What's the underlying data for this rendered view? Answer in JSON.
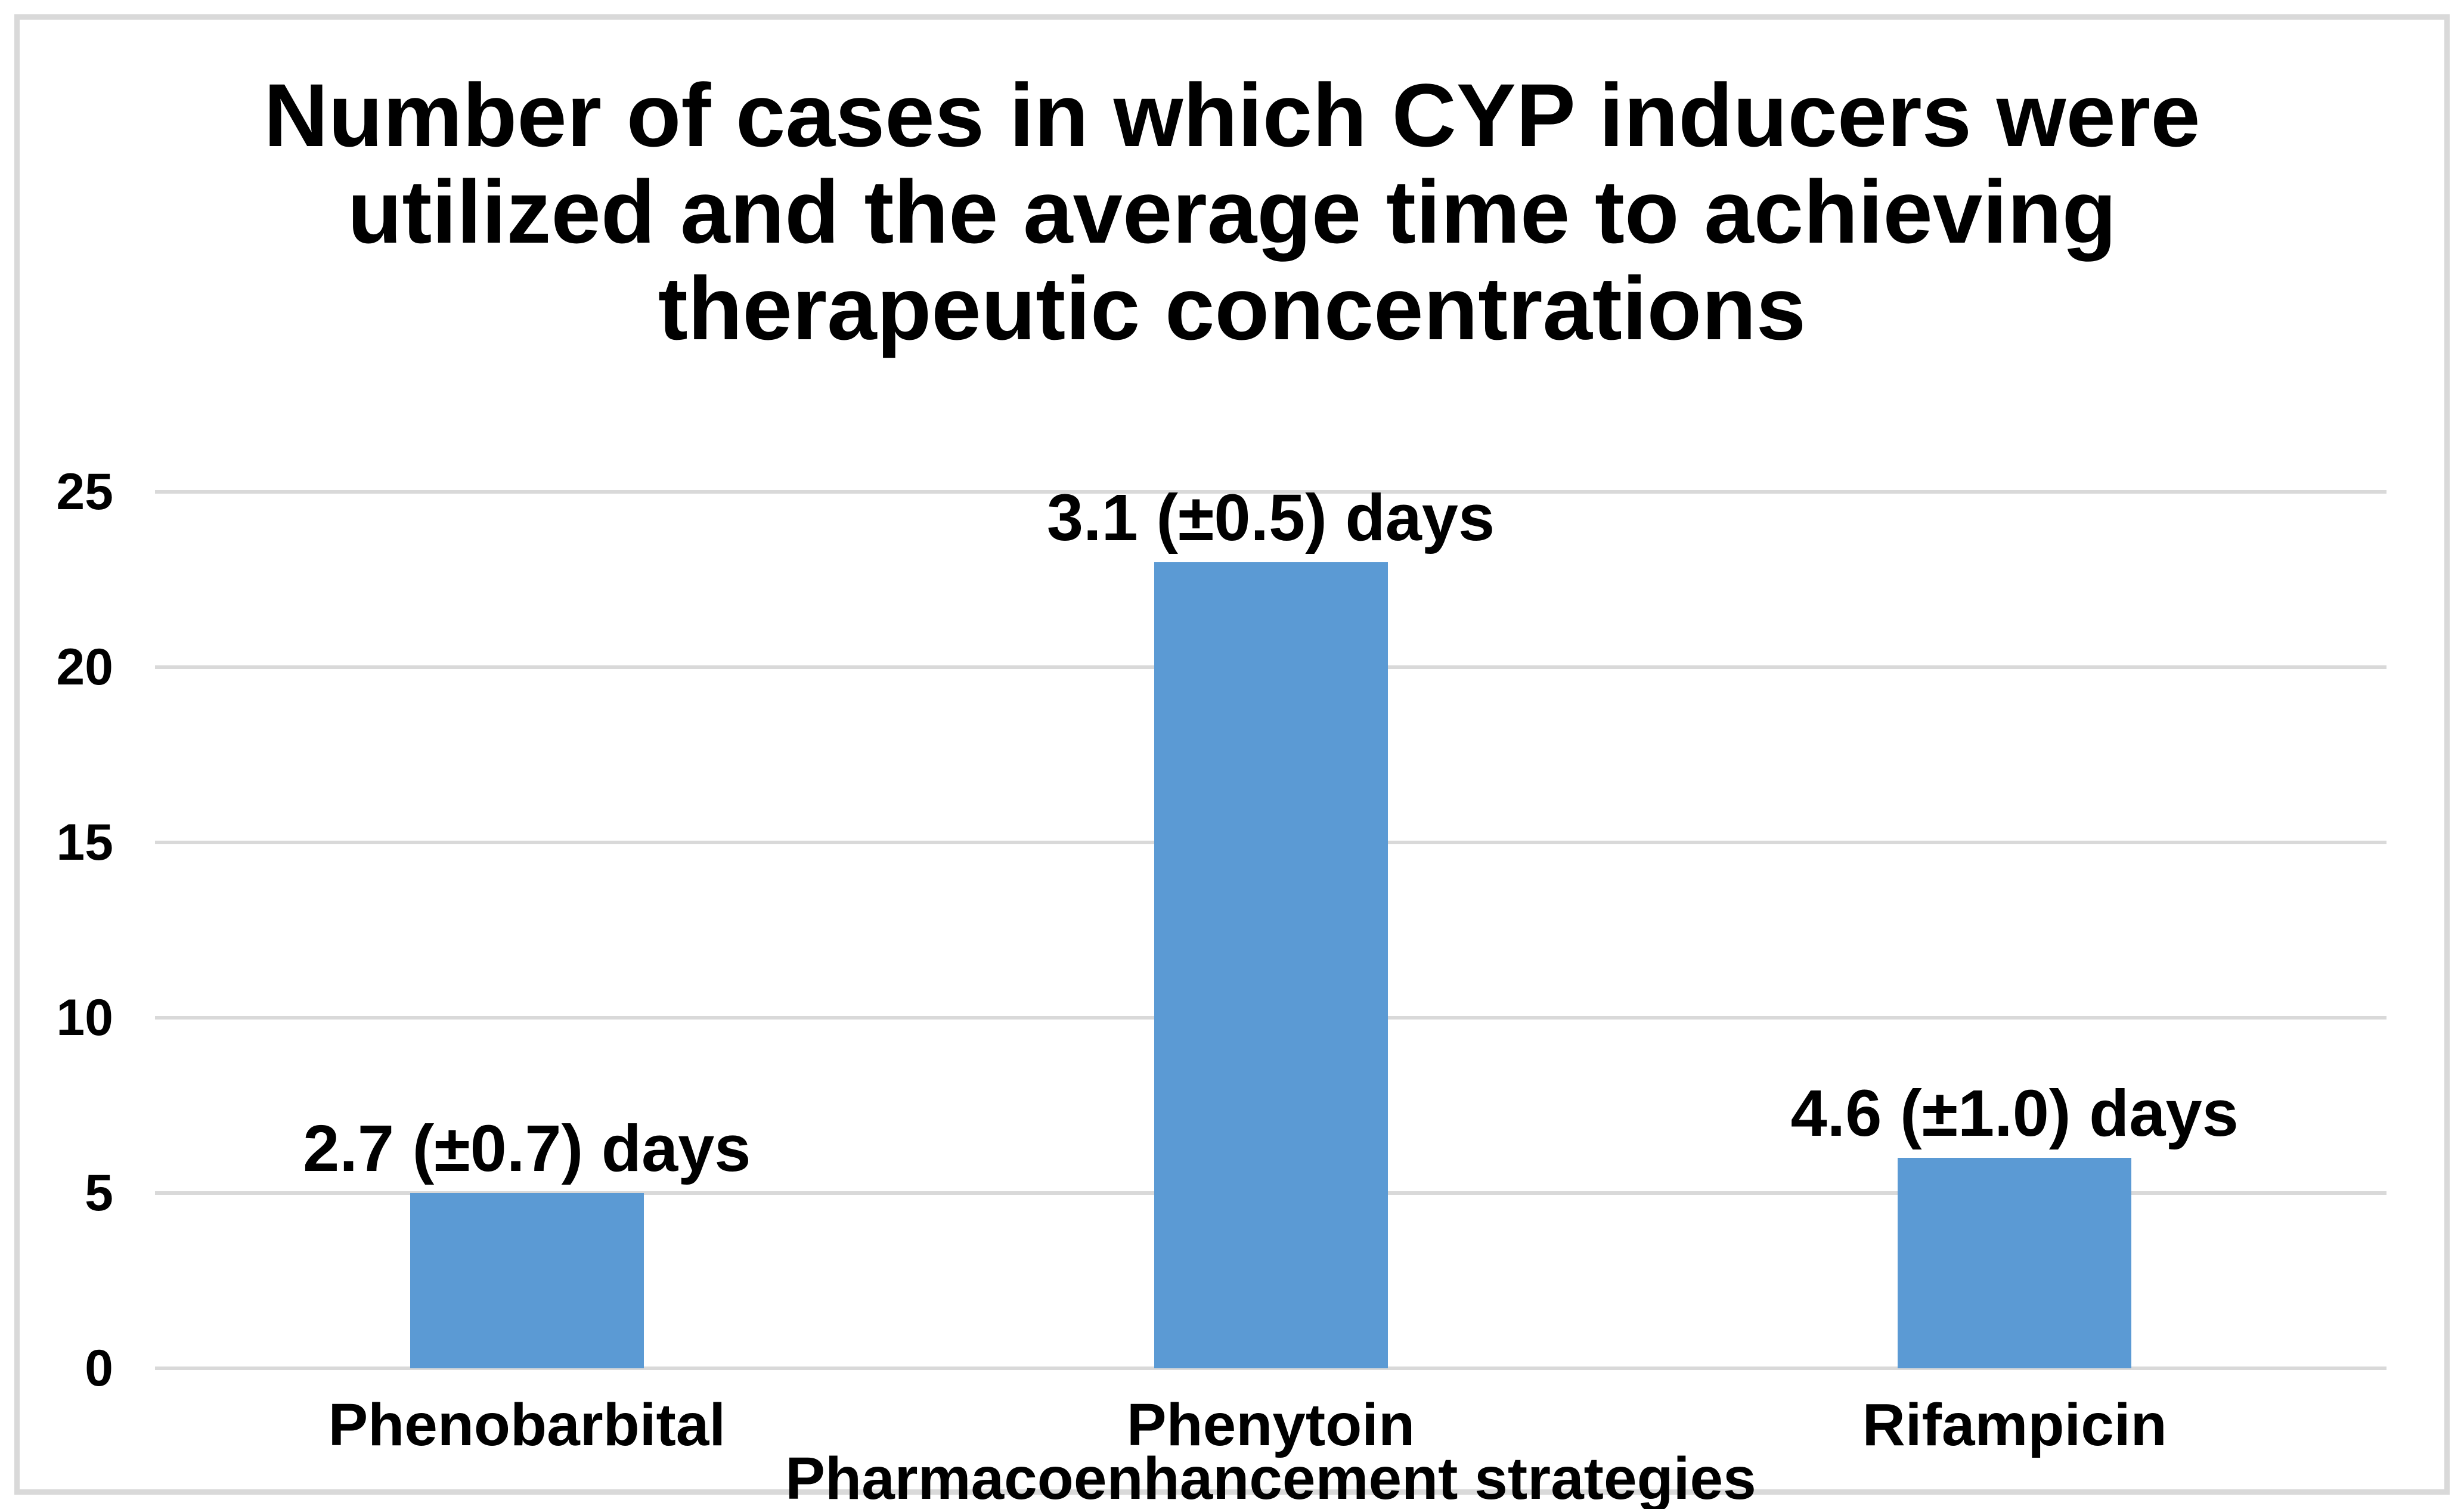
{
  "chart_data": {
    "type": "bar",
    "title": "Number of cases in which CYP inducers were utilized and the average time to achieving therapeutic concentrations",
    "xlabel": "Pharmacoenhancement strategies",
    "ylabel": "",
    "categories": [
      "Phenobarbital",
      "Phenytoin",
      "Rifampicin"
    ],
    "values": [
      5,
      23,
      6
    ],
    "bar_labels": [
      "2.7 (±0.7) days",
      "3.1 (±0.5) days",
      "4.6 (±1.0) days"
    ],
    "yticks": [
      0,
      5,
      10,
      15,
      20,
      25
    ],
    "ylim": [
      0,
      25
    ],
    "grid": true,
    "legend_position": "none",
    "bar_color": "#5b9ad4",
    "gridline_color": "#d9d9d9",
    "frame_color": "#d9d9d9",
    "text_color": "#000000"
  }
}
